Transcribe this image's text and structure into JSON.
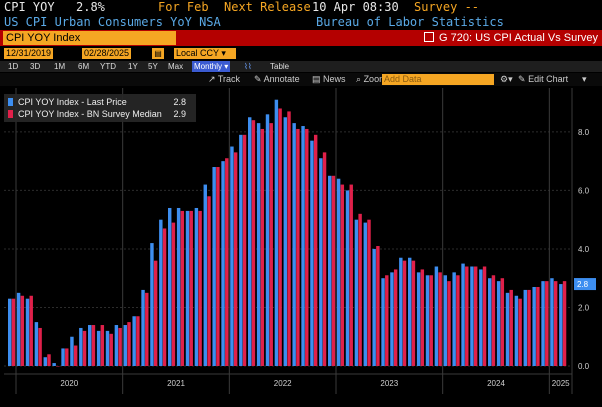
{
  "header": {
    "ticker": "CPI YOY",
    "last_value": "2.8%",
    "period": "For Feb",
    "next_release_label": "Next Release",
    "next_release_date": "10 Apr 08:30",
    "survey_label": "Survey --",
    "description": "US CPI Urban Consumers YoY NSA",
    "source": "Bureau of Labor Statistics"
  },
  "toolbar": {
    "index_name": "CPI YOY Index",
    "chart_code": "G 720: US CPI Actual Vs Survey",
    "start_date": "12/31/2019",
    "end_date": "02/28/2025",
    "currency": "Local CCY",
    "ranges": [
      "1D",
      "3D",
      "1M",
      "6M",
      "YTD",
      "1Y",
      "5Y",
      "Max"
    ],
    "frequency": "Monthly ▾",
    "table_label": "Table",
    "track_label": "Track",
    "annotate_label": "Annotate",
    "news_label": "News",
    "zoom_label": "Zoom",
    "add_data_placeholder": "Add Data",
    "edit_chart_label": "Edit Chart"
  },
  "legend": {
    "items": [
      {
        "name": "CPI YOY Index - Last Price",
        "value": "2.8",
        "color": "#3d8ef0"
      },
      {
        "name": "CPI YOY Index - BN Survey Median",
        "value": "2.9",
        "color": "#e0204a"
      }
    ]
  },
  "last_value_badge": "2.8",
  "colors": {
    "actual": "#3d8ef0",
    "survey": "#e0204a",
    "accent": "#f5a623",
    "bar": "#b40000"
  },
  "chart_data": {
    "type": "bar",
    "title": "",
    "ylim": [
      0,
      9.5
    ],
    "yticks": [
      "0.0",
      "2.0",
      "4.0",
      "6.0",
      "8.0"
    ],
    "xticks": [
      "2020",
      "2021",
      "2022",
      "2023",
      "2024",
      "2025"
    ],
    "grid": true,
    "legend_position": "top-left",
    "categories": [
      "2019-12",
      "2020-01",
      "2020-02",
      "2020-03",
      "2020-04",
      "2020-05",
      "2020-06",
      "2020-07",
      "2020-08",
      "2020-09",
      "2020-10",
      "2020-11",
      "2020-12",
      "2021-01",
      "2021-02",
      "2021-03",
      "2021-04",
      "2021-05",
      "2021-06",
      "2021-07",
      "2021-08",
      "2021-09",
      "2021-10",
      "2021-11",
      "2021-12",
      "2022-01",
      "2022-02",
      "2022-03",
      "2022-04",
      "2022-05",
      "2022-06",
      "2022-07",
      "2022-08",
      "2022-09",
      "2022-10",
      "2022-11",
      "2022-12",
      "2023-01",
      "2023-02",
      "2023-03",
      "2023-04",
      "2023-05",
      "2023-06",
      "2023-07",
      "2023-08",
      "2023-09",
      "2023-10",
      "2023-11",
      "2023-12",
      "2024-01",
      "2024-02",
      "2024-03",
      "2024-04",
      "2024-05",
      "2024-06",
      "2024-07",
      "2024-08",
      "2024-09",
      "2024-10",
      "2024-11",
      "2024-12",
      "2025-01",
      "2025-02"
    ],
    "series": [
      {
        "name": "CPI YOY Index - Last Price",
        "values": [
          2.3,
          2.5,
          2.3,
          1.5,
          0.3,
          0.1,
          0.6,
          1.0,
          1.3,
          1.4,
          1.2,
          1.2,
          1.4,
          1.4,
          1.7,
          2.6,
          4.2,
          5.0,
          5.4,
          5.4,
          5.3,
          5.4,
          6.2,
          6.8,
          7.0,
          7.5,
          7.9,
          8.5,
          8.3,
          8.6,
          9.1,
          8.5,
          8.3,
          8.2,
          7.7,
          7.1,
          6.5,
          6.4,
          6.0,
          5.0,
          4.9,
          4.0,
          3.0,
          3.2,
          3.7,
          3.7,
          3.2,
          3.1,
          3.4,
          3.1,
          3.2,
          3.5,
          3.4,
          3.3,
          3.0,
          2.9,
          2.5,
          2.4,
          2.6,
          2.7,
          2.9,
          3.0,
          2.8
        ]
      },
      {
        "name": "CPI YOY Index - BN Survey Median",
        "values": [
          2.3,
          2.4,
          2.4,
          1.3,
          0.4,
          0.0,
          0.6,
          0.7,
          1.2,
          1.4,
          1.4,
          1.1,
          1.3,
          1.5,
          1.7,
          2.5,
          3.6,
          4.7,
          4.9,
          5.3,
          5.3,
          5.3,
          5.8,
          6.8,
          7.1,
          7.3,
          7.9,
          8.4,
          8.1,
          8.3,
          8.8,
          8.7,
          8.1,
          8.1,
          7.9,
          7.3,
          6.5,
          6.2,
          6.2,
          5.2,
          5.0,
          4.1,
          3.1,
          3.3,
          3.6,
          3.6,
          3.3,
          3.1,
          3.2,
          2.9,
          3.1,
          3.4,
          3.4,
          3.4,
          3.1,
          3.0,
          2.6,
          2.3,
          2.6,
          2.7,
          2.9,
          2.9,
          2.9
        ]
      }
    ]
  }
}
